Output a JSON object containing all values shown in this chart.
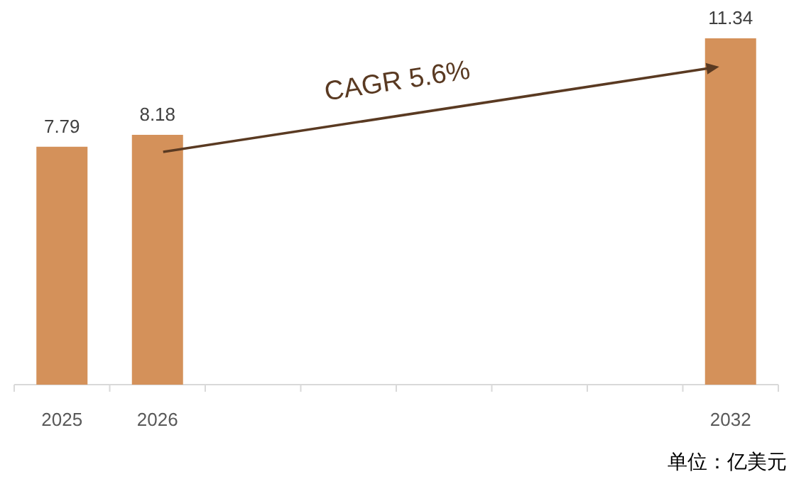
{
  "chart_data": {
    "type": "bar",
    "categories": [
      "2025",
      "2026",
      null,
      null,
      null,
      null,
      null,
      "2032"
    ],
    "values": [
      7.79,
      8.18,
      null,
      null,
      null,
      null,
      null,
      11.34
    ],
    "color": "#d4915a",
    "data_labels": true,
    "annotations": [
      "CAGR 5.6%",
      "单位：亿美元"
    ]
  }
}
